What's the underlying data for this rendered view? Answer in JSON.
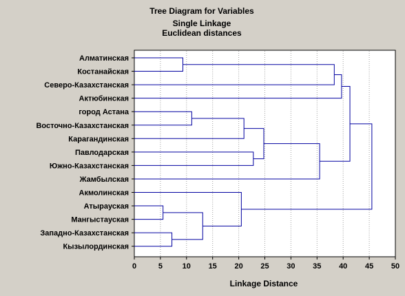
{
  "chart_data": {
    "type": "dendrogram",
    "title": [
      "Tree Diagram for  Variables",
      "Single Linkage",
      "Euclidean distances"
    ],
    "xlabel": "Linkage Distance",
    "xlim": [
      0,
      50
    ],
    "xticks": [
      0,
      5,
      10,
      15,
      20,
      25,
      30,
      35,
      40,
      45,
      50
    ],
    "grid": "vertical dotted",
    "leaves": [
      "Алматинская",
      "Костанайская",
      "Северо-Казахстанская",
      "Актюбинская",
      "город Астана",
      "Восточно-Казахстанская",
      "Карагандинская",
      "Павлодарская",
      "Южно-Казахстанская",
      "Жамбылская",
      "Акмолинская",
      "Атырауская",
      "Мангыстауская",
      "Западно-Казахстанская",
      "Кызылординская"
    ],
    "merges": [
      {
        "a": 0,
        "b": 1,
        "distance": 9.3
      },
      {
        "a": 11,
        "b": 12,
        "distance": 5.5
      },
      {
        "a": 13,
        "b": 14,
        "distance": 7.2
      },
      {
        "a": 4,
        "b": 5,
        "distance": 11.0
      },
      {
        "a": "m2",
        "b": "m3",
        "distance": 13.1
      },
      {
        "a": "m4",
        "b": 6,
        "distance": 21.0
      },
      {
        "a": 7,
        "b": 8,
        "distance": 22.8
      },
      {
        "a": "m6",
        "b": "m7",
        "distance": 24.8
      },
      {
        "a": 10,
        "b": "m5",
        "distance": 20.5
      },
      {
        "a": "m8",
        "b": 9,
        "distance": 35.5
      },
      {
        "a": "m1",
        "b": 2,
        "distance": 38.3
      },
      {
        "a": "m11",
        "b": 3,
        "distance": 39.7
      },
      {
        "a": "m12",
        "b": "m10",
        "distance": 41.3
      },
      {
        "a": "m13",
        "b": "m9",
        "distance": 45.5
      }
    ],
    "colors": {
      "background": "#d4d0c8",
      "plot_background": "#ffffff",
      "lines": "#0000a0",
      "grid": "#a0a0a0",
      "axis": "#000000"
    }
  }
}
